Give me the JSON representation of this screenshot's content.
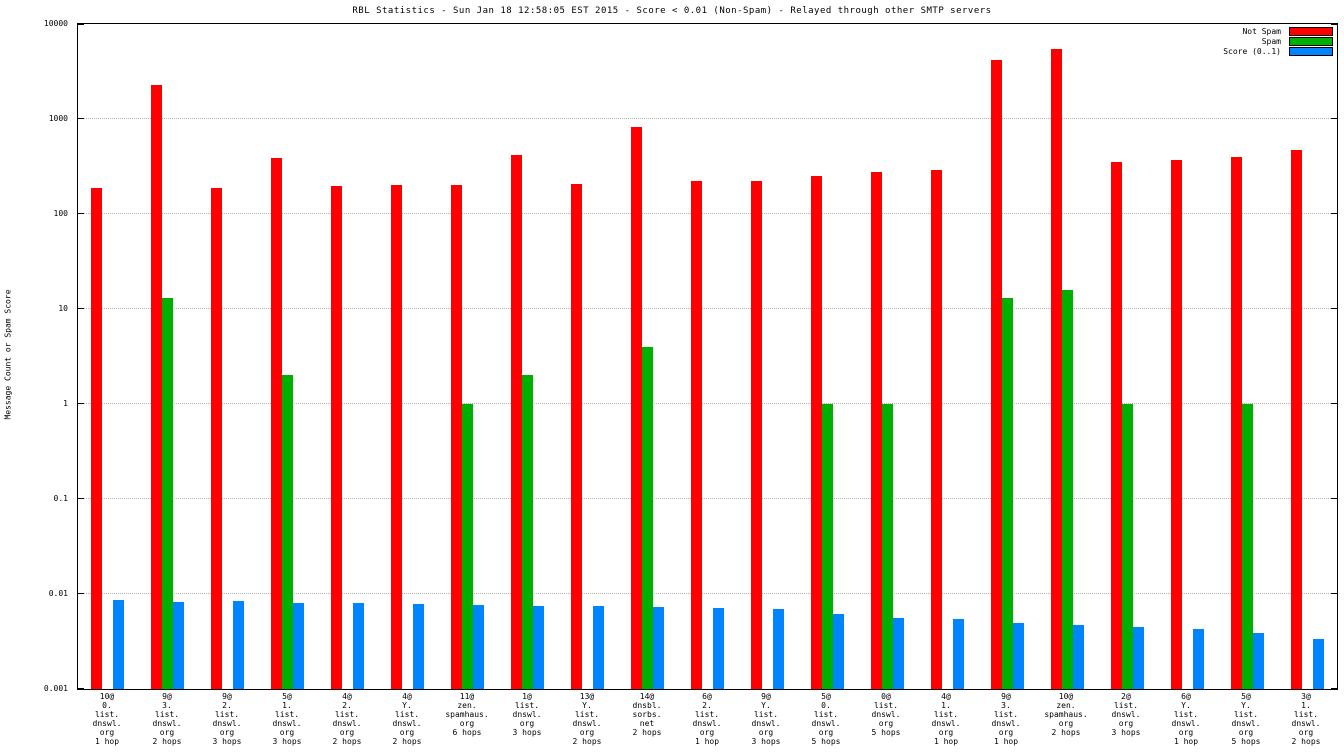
{
  "title": "RBL Statistics - Sun Jan 18 12:58:05 EST 2015 - Score < 0.01 (Non-Spam) - Relayed through other SMTP servers",
  "ylabel": "Message Count or Spam Score",
  "legend_position": "top-right",
  "chart_data": {
    "type": "bar",
    "scale": "log",
    "ylim": [
      0.001,
      10000
    ],
    "grid": "horizontal-dotted",
    "yticks": [
      "10000",
      "1000",
      "100",
      "10",
      "1",
      "0.1",
      "0.01",
      "0.001"
    ],
    "categories": [
      [
        "10@",
        "0.",
        "list.",
        "dnswl.",
        "org",
        "1 hop"
      ],
      [
        "9@",
        "3.",
        "list.",
        "dnswl.",
        "org",
        "2 hops"
      ],
      [
        "9@",
        "2.",
        "list.",
        "dnswl.",
        "org",
        "3 hops"
      ],
      [
        "5@",
        "1.",
        "list.",
        "dnswl.",
        "org",
        "3 hops"
      ],
      [
        "4@",
        "2.",
        "list.",
        "dnswl.",
        "org",
        "2 hops"
      ],
      [
        "4@",
        "Y.",
        "list.",
        "dnswl.",
        "org",
        "2 hops"
      ],
      [
        "11@",
        "zen.",
        "spamhaus.",
        "org",
        "6 hops"
      ],
      [
        "1@",
        "list.",
        "dnswl.",
        "org",
        "3 hops"
      ],
      [
        "13@",
        "Y.",
        "list.",
        "dnswl.",
        "org",
        "2 hops"
      ],
      [
        "14@",
        "dnsbl.",
        "sorbs.",
        "net",
        "2 hops"
      ],
      [
        "6@",
        "2.",
        "list.",
        "dnswl.",
        "org",
        "1 hop"
      ],
      [
        "9@",
        "Y.",
        "list.",
        "dnswl.",
        "org",
        "3 hops"
      ],
      [
        "5@",
        "0.",
        "list.",
        "dnswl.",
        "org",
        "5 hops"
      ],
      [
        "0@",
        "list.",
        "dnswl.",
        "org",
        "5 hops"
      ],
      [
        "4@",
        "1.",
        "list.",
        "dnswl.",
        "org",
        "1 hop"
      ],
      [
        "9@",
        "3.",
        "list.",
        "dnswl.",
        "org",
        "1 hop"
      ],
      [
        "10@",
        "zen.",
        "spamhaus.",
        "org",
        "2 hops"
      ],
      [
        "2@",
        "list.",
        "dnswl.",
        "org",
        "3 hops"
      ],
      [
        "6@",
        "Y.",
        "list.",
        "dnswl.",
        "org",
        "1 hop"
      ],
      [
        "5@",
        "Y.",
        "list.",
        "dnswl.",
        "org",
        "5 hops"
      ],
      [
        "3@",
        "1.",
        "list.",
        "dnswl.",
        "org",
        "2 hops"
      ]
    ],
    "series": [
      {
        "name": "Not Spam",
        "color": "#ff0000",
        "values": [
          190,
          2300,
          190,
          390,
          195,
          200,
          200,
          420,
          205,
          830,
          220,
          225,
          250,
          280,
          290,
          4200,
          5500,
          355,
          370,
          400,
          470
        ]
      },
      {
        "name": "Spam",
        "color": "#00b000",
        "values": [
          null,
          13,
          null,
          2,
          null,
          null,
          1,
          2,
          null,
          4,
          null,
          null,
          1,
          1,
          null,
          13,
          16,
          1,
          null,
          1,
          null
        ]
      },
      {
        "name": "Score (0..1)",
        "color": "#0084ff",
        "values": [
          0.0086,
          0.0082,
          0.0084,
          0.0081,
          0.0081,
          0.0078,
          0.0077,
          0.0074,
          0.0074,
          0.0073,
          0.0072,
          0.007,
          0.0062,
          0.0056,
          0.0054,
          0.005,
          0.0047,
          0.0045,
          0.0043,
          0.0039,
          0.0034
        ]
      }
    ]
  }
}
